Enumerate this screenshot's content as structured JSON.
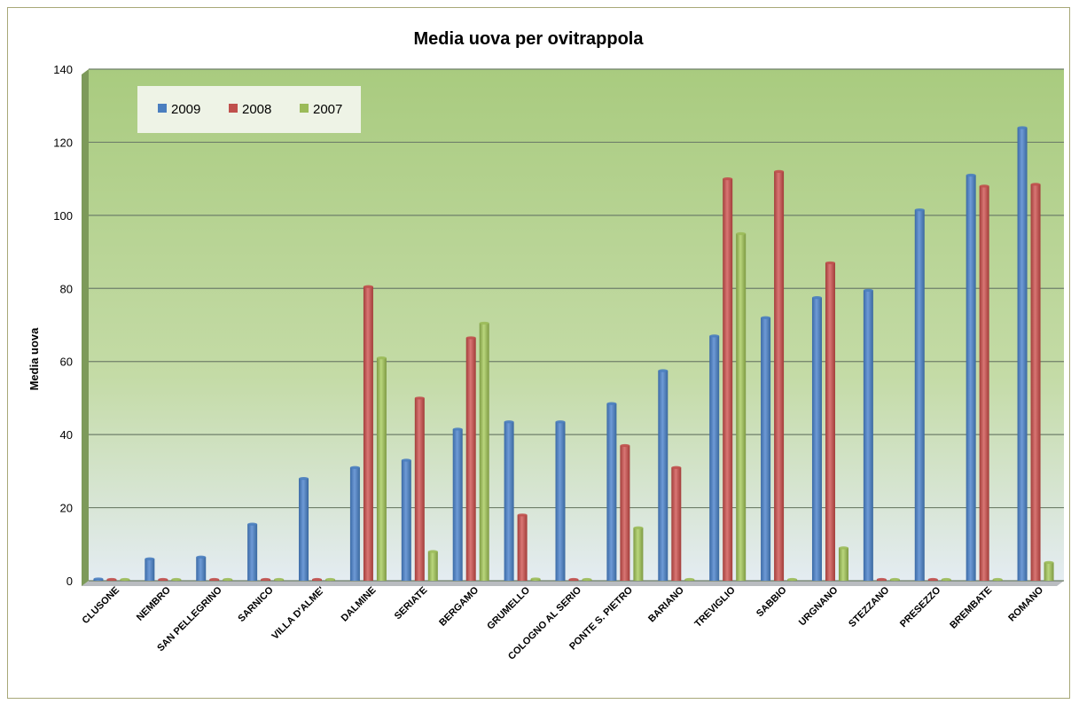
{
  "chart_data": {
    "type": "bar",
    "title": "Media uova per ovitrappola",
    "xlabel": "",
    "ylabel": "Media uova",
    "ylim": [
      0,
      140
    ],
    "yticks": [
      0,
      20,
      40,
      60,
      80,
      100,
      120,
      140
    ],
    "grid": true,
    "legend_position": "top-left",
    "categories": [
      "CLUSONE",
      "NEMBRO",
      "SAN PELLEGRINO",
      "SARNICO",
      "VILLA D'ALME'",
      "DALMINE",
      "SERIATE",
      "BERGAMO",
      "GRUMELLO",
      "COLOGNO AL SERIO",
      "PONTE S. PIETRO",
      "BARIANO",
      "TREVIGLIO",
      "SABBIO",
      "URGNANO",
      "STEZZANO",
      "PRESEZZO",
      "BREMBATE",
      "ROMANO"
    ],
    "series": [
      {
        "name": "2009",
        "color": "#4a7ebf",
        "values": [
          0.5,
          6,
          6.5,
          15.5,
          28,
          31,
          33,
          41.5,
          43.5,
          43.5,
          48.5,
          57.5,
          67,
          72,
          77.5,
          79.5,
          101.5,
          111,
          124
        ]
      },
      {
        "name": "2008",
        "color": "#c0504d",
        "values": [
          0,
          0,
          0,
          0,
          0,
          80.5,
          50,
          66.5,
          18,
          0,
          37,
          31,
          110,
          112,
          87,
          0,
          0,
          108,
          108.5
        ]
      },
      {
        "name": "2007",
        "color": "#9bbb59",
        "values": [
          0,
          0,
          0,
          0,
          0,
          61,
          8,
          70.5,
          0.5,
          0,
          14.5,
          0,
          95,
          0,
          9,
          0,
          0,
          0,
          5
        ]
      }
    ]
  }
}
